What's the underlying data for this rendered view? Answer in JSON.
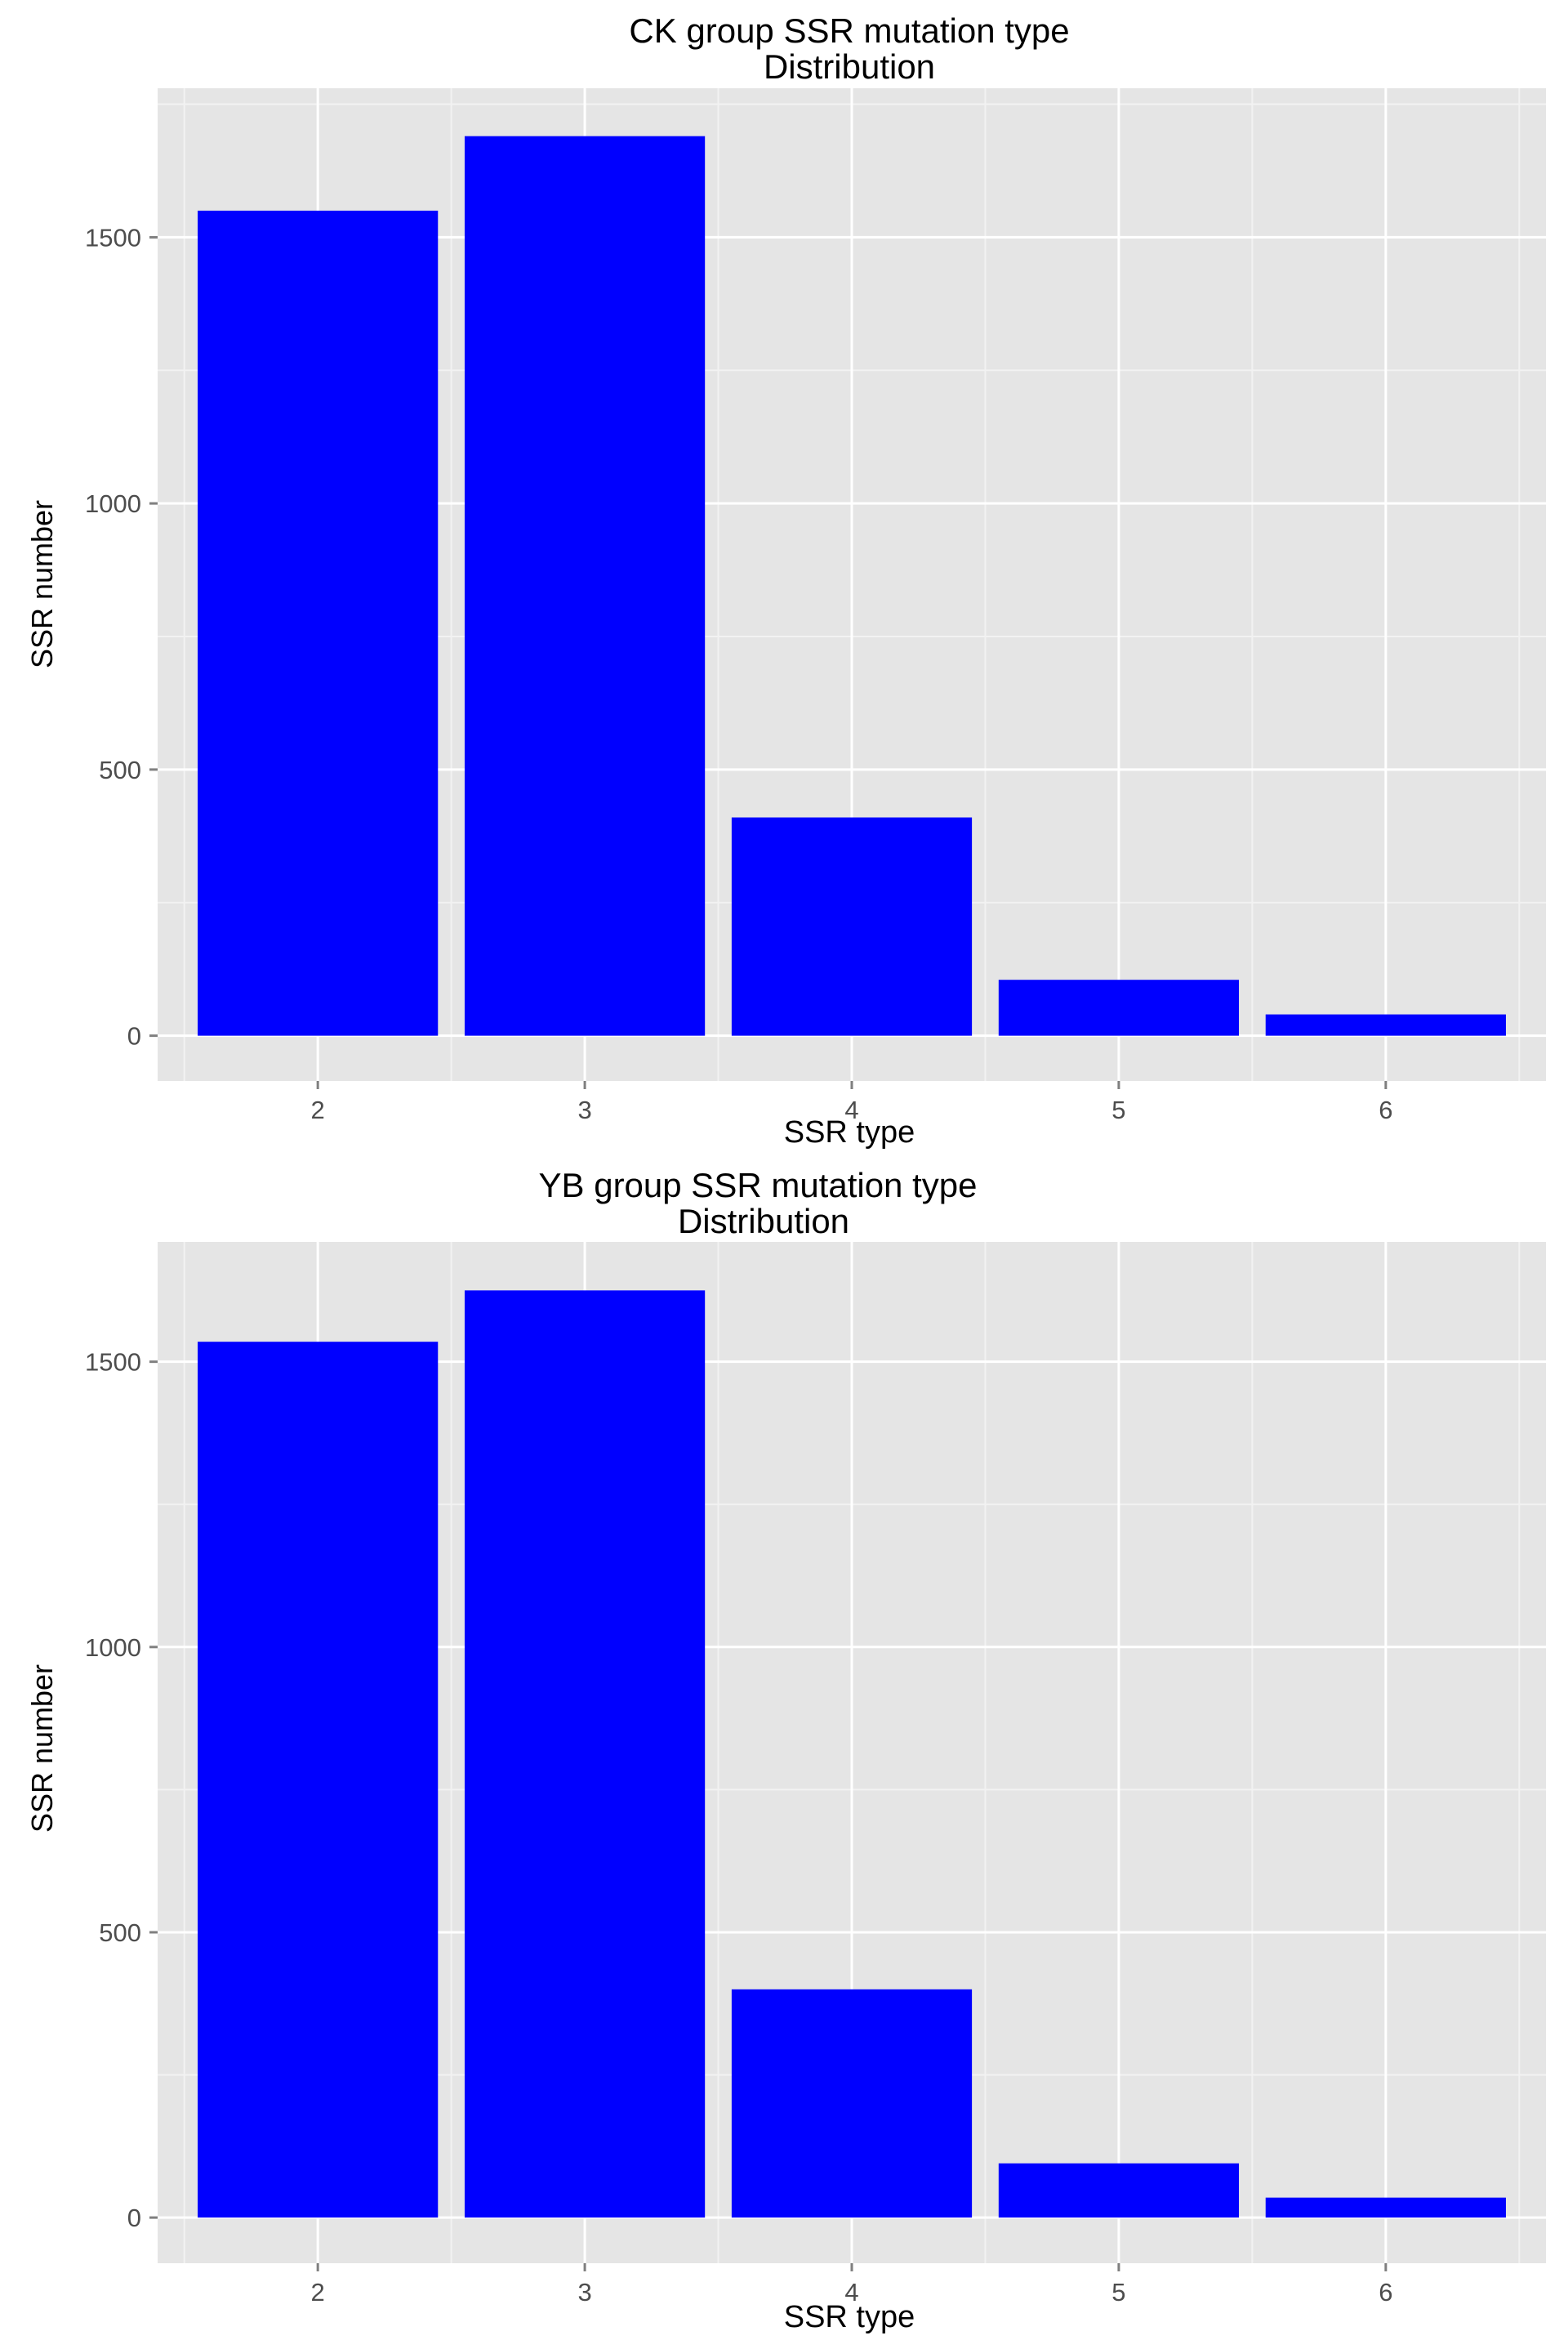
{
  "colors": {
    "panel_background": "#e5e5e5",
    "grid_major": "#ffffff",
    "grid_minor": "#f2f2f2",
    "bar_fill": "#0000ff",
    "axis_text": "#4d4d4d",
    "title_text": "#000000"
  },
  "chart_data": [
    {
      "type": "bar",
      "title": "CK group SSR mutation type",
      "subtitle": "Distribution",
      "xlabel": "SSR type",
      "ylabel": "SSR number",
      "categories": [
        "2",
        "3",
        "4",
        "5",
        "6"
      ],
      "values": [
        1550,
        1690,
        410,
        105,
        40
      ],
      "ylim": [
        -85,
        1780
      ],
      "yticks": [
        0,
        500,
        1000,
        1500
      ],
      "ytick_labels": [
        "0",
        "500",
        "1000",
        "1500"
      ],
      "grid": true
    },
    {
      "type": "bar",
      "title": "YB group SSR mutation type",
      "subtitle": "Distribution",
      "xlabel": "SSR type",
      "ylabel": "SSR number",
      "categories": [
        "2",
        "3",
        "4",
        "5",
        "6"
      ],
      "values": [
        1535,
        1625,
        400,
        95,
        35
      ],
      "ylim": [
        -80,
        1710
      ],
      "yticks": [
        0,
        500,
        1000,
        1500
      ],
      "ytick_labels": [
        "0",
        "500",
        "1000",
        "1500"
      ],
      "grid": true
    }
  ]
}
